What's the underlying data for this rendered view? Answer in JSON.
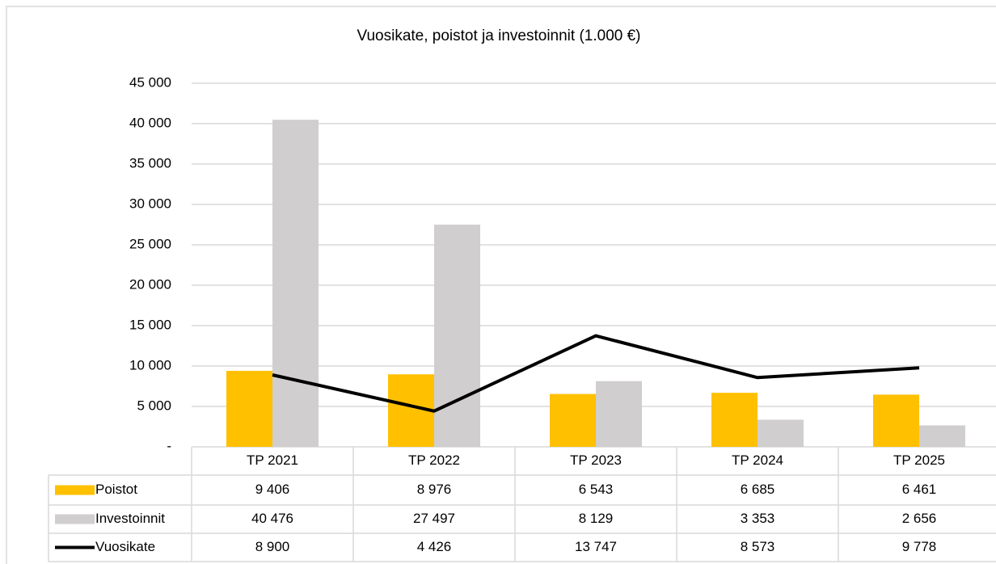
{
  "chart_data": {
    "type": "bar",
    "title": "Vuosikate, poistot ja investoinnit (1.000 €)",
    "categories": [
      "TP 2021",
      "TP 2022",
      "TP 2023",
      "TP 2024",
      "TP 2025"
    ],
    "series": [
      {
        "name": "Poistot",
        "type": "bar",
        "color": "#ffc000",
        "values": [
          9406,
          8976,
          6543,
          6685,
          6461
        ],
        "value_labels": [
          "9 406",
          "8 976",
          "6 543",
          "6 685",
          "6 461"
        ]
      },
      {
        "name": "Investoinnit",
        "type": "bar",
        "color": "#d0cece",
        "values": [
          40476,
          27497,
          8129,
          3353,
          2656
        ],
        "value_labels": [
          "40 476",
          "27 497",
          "8 129",
          "3 353",
          "2 656"
        ]
      },
      {
        "name": "Vuosikate",
        "type": "line",
        "color": "#000000",
        "values": [
          8900,
          4426,
          13747,
          8573,
          9778
        ],
        "value_labels": [
          "8 900",
          "4 426",
          "13 747",
          "8 573",
          "9 778"
        ]
      }
    ],
    "ylim": [
      0,
      45000
    ],
    "yticks": [
      {
        "value": 0,
        "label": "-"
      },
      {
        "value": 5000,
        "label": "5 000"
      },
      {
        "value": 10000,
        "label": "10 000"
      },
      {
        "value": 15000,
        "label": "15 000"
      },
      {
        "value": 20000,
        "label": "20 000"
      },
      {
        "value": 25000,
        "label": "25 000"
      },
      {
        "value": 30000,
        "label": "30 000"
      },
      {
        "value": 35000,
        "label": "35 000"
      },
      {
        "value": 40000,
        "label": "40 000"
      },
      {
        "value": 45000,
        "label": "45 000"
      }
    ],
    "grid": true
  }
}
